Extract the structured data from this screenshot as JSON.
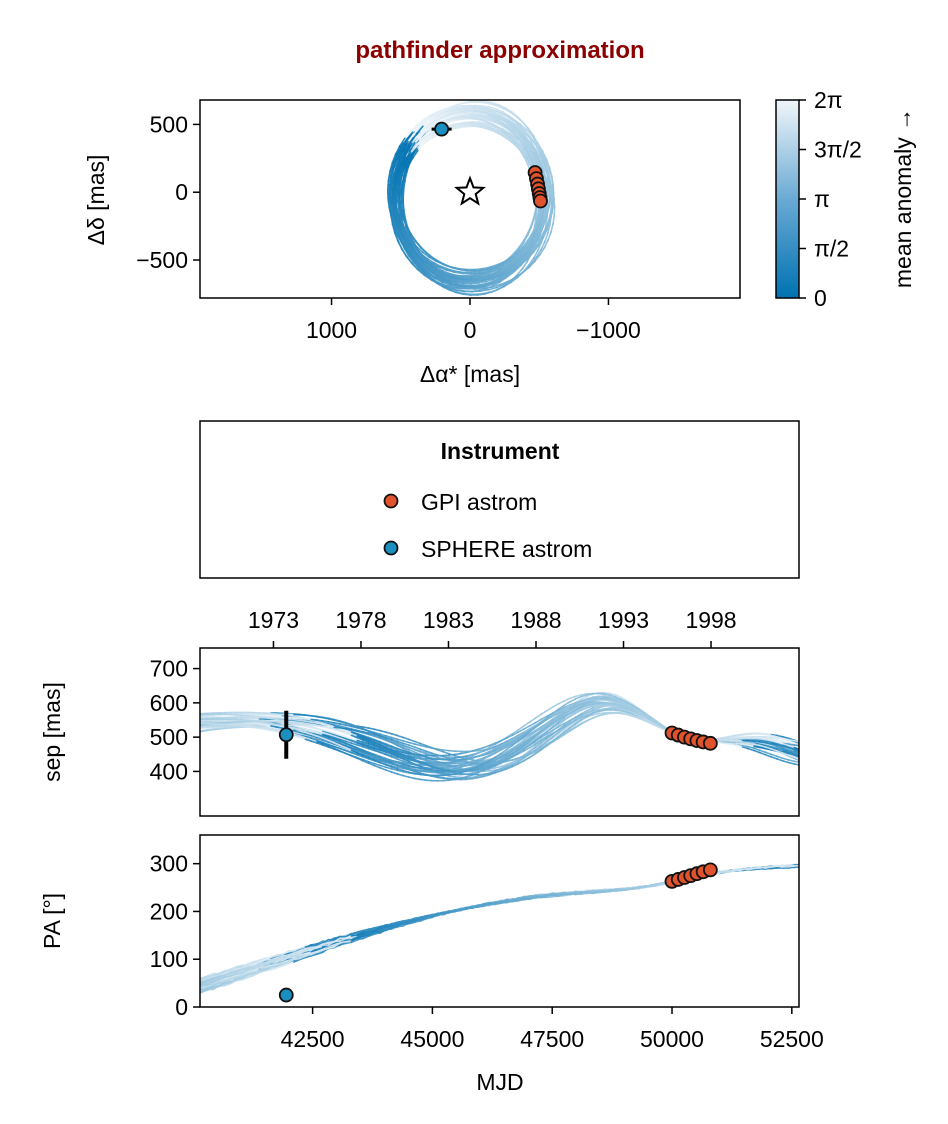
{
  "title": "pathfinder approximation",
  "colors": {
    "title": "#8b0000",
    "cmap_low": "#0072b2",
    "cmap_high": "#f1f6fa",
    "gpi": "#e0532d",
    "sphere": "#1a8fc0"
  },
  "colorbar": {
    "label": "mean anomaly →",
    "ticks": [
      "0",
      "π/2",
      "π",
      "3π/2",
      "2π"
    ]
  },
  "legend": {
    "title": "Instrument",
    "entries": [
      "GPI astrom",
      "SPHERE astrom"
    ]
  },
  "chart_data": [
    {
      "name": "sky-plane",
      "type": "line",
      "xlabel": "Δα* [mas]",
      "ylabel": "Δδ [mas]",
      "xlim": [
        1950,
        -1950
      ],
      "ylim": [
        -780,
        680
      ],
      "xticks": [
        1000,
        0,
        -1000
      ],
      "xticklabels": [
        "1000",
        "0",
        "−1000"
      ],
      "yticks": [
        -500,
        0,
        500
      ],
      "yticklabels": [
        "−500",
        "0",
        "500"
      ],
      "star": [
        0,
        0
      ],
      "sphere_points": [
        {
          "ra": 205,
          "dec": 465
        }
      ],
      "gpi_points": [
        {
          "ra": -470,
          "dec": 145
        },
        {
          "ra": -480,
          "dec": 100
        },
        {
          "ra": -488,
          "dec": 60
        },
        {
          "ra": -494,
          "dec": 25
        },
        {
          "ra": -500,
          "dec": -10
        },
        {
          "ra": -505,
          "dec": -40
        },
        {
          "ra": -509,
          "dec": -65
        }
      ]
    },
    {
      "name": "separation",
      "type": "line",
      "ylabel": "sep [mas]",
      "xlim": [
        40150,
        52650
      ],
      "ylim": [
        270,
        760
      ],
      "yticks": [
        400,
        500,
        600,
        700
      ],
      "yticklabels": [
        "400",
        "500",
        "600",
        "700"
      ],
      "top_axis_ticks": [
        1973,
        1978,
        1983,
        1988,
        1993,
        1998
      ],
      "top_axis_ticklabels": [
        "1973",
        "1978",
        "1983",
        "1988",
        "1993",
        "1998"
      ],
      "sphere_points": [
        {
          "mjd": 41950,
          "sep": 507,
          "err": 70
        }
      ],
      "gpi_points": [
        {
          "mjd": 50000,
          "sep": 512
        },
        {
          "mjd": 50130,
          "sep": 506
        },
        {
          "mjd": 50260,
          "sep": 500
        },
        {
          "mjd": 50390,
          "sep": 495
        },
        {
          "mjd": 50520,
          "sep": 490
        },
        {
          "mjd": 50650,
          "sep": 486
        },
        {
          "mjd": 50800,
          "sep": 482
        }
      ]
    },
    {
      "name": "position-angle",
      "type": "line",
      "xlabel": "MJD",
      "ylabel": "PA [°]",
      "xlim": [
        40150,
        52650
      ],
      "ylim": [
        0,
        360
      ],
      "xticks": [
        42500,
        45000,
        47500,
        50000,
        52500
      ],
      "xticklabels": [
        "42500",
        "45000",
        "47500",
        "50000",
        "52500"
      ],
      "yticks": [
        0,
        100,
        200,
        300
      ],
      "yticklabels": [
        "0",
        "100",
        "200",
        "300"
      ],
      "sphere_points": [
        {
          "mjd": 41950,
          "pa": 25
        }
      ],
      "gpi_points": [
        {
          "mjd": 50000,
          "pa": 263
        },
        {
          "mjd": 50130,
          "pa": 267
        },
        {
          "mjd": 50260,
          "pa": 271
        },
        {
          "mjd": 50390,
          "pa": 275
        },
        {
          "mjd": 50520,
          "pa": 279
        },
        {
          "mjd": 50650,
          "pa": 283
        },
        {
          "mjd": 50800,
          "pa": 287
        }
      ]
    }
  ]
}
